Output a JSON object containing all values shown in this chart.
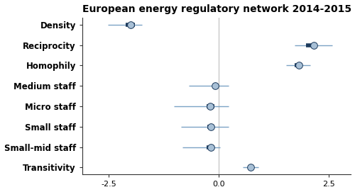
{
  "title": "European energy regulatory network 2014-2015",
  "labels": [
    "Density",
    "Reciprocity",
    "Homophily",
    "Medium staff",
    "Micro staff",
    "Small staff",
    "Small-mid staff",
    "Transitivity"
  ],
  "centers": [
    -2.0,
    2.15,
    1.82,
    -0.08,
    -0.2,
    -0.18,
    -0.18,
    0.72
  ],
  "ci95_lo": [
    -2.52,
    1.72,
    1.52,
    -0.68,
    -1.02,
    -0.85,
    -0.82,
    0.55
  ],
  "ci95_hi": [
    -1.75,
    2.58,
    2.08,
    0.22,
    0.22,
    0.22,
    0.03,
    0.9
  ],
  "ci50_lo": [
    -2.12,
    1.98,
    1.72,
    -0.14,
    -0.28,
    -0.26,
    -0.28,
    null
  ],
  "ci50_hi": [
    -1.9,
    2.22,
    1.9,
    -0.02,
    -0.1,
    -0.1,
    -0.1,
    null
  ],
  "xlim": [
    -3.1,
    3.0
  ],
  "xticks": [
    -2.5,
    0.0,
    2.5
  ],
  "xtick_labels": [
    "-2.5",
    "0.0",
    "2.5"
  ],
  "center_color": "#a8c0d6",
  "inner_color": "#1c3a5c",
  "outer_color": "#7ba3c5",
  "vline_color": "#c8c8c8",
  "background_color": "#ffffff",
  "title_fontsize": 10,
  "label_fontsize": 8.5,
  "tick_fontsize": 8,
  "marker_size": 7,
  "inner_lw": 4.0,
  "outer_lw": 1.0
}
